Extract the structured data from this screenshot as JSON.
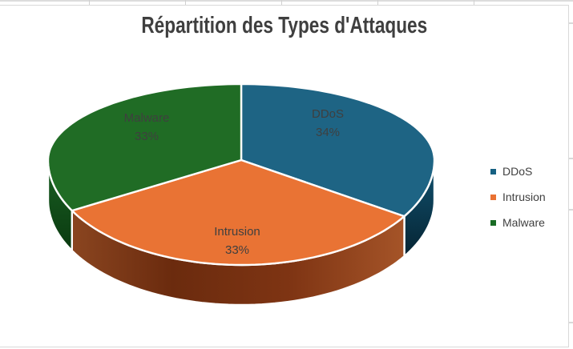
{
  "chart_data": {
    "type": "pie",
    "style": "3d",
    "title": "Répartition des Types d'Attaques",
    "categories": [
      "DDoS",
      "Intrusion",
      "Malware"
    ],
    "values": [
      34,
      33,
      33
    ],
    "unit": "percent",
    "data_labels": [
      "34%",
      "33%",
      "33%"
    ],
    "label_format": "category-name + percentage",
    "legend_position": "right",
    "colors": {
      "marker": [
        "#156082",
        "#E97132",
        "#196B24"
      ],
      "face": [
        "#1E6484",
        "#E97334",
        "#206C25"
      ],
      "label_text": "#3F3F3F",
      "title_text": "#3F3F3F",
      "gridline": "#D9D9D9"
    }
  }
}
